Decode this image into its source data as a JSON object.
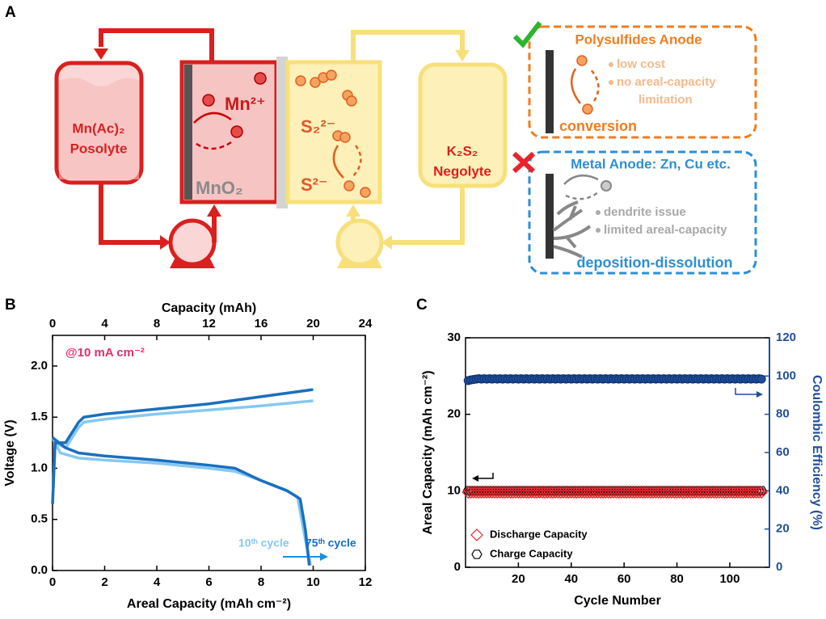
{
  "panel_labels": [
    "A",
    "B",
    "C"
  ],
  "diagram": {
    "posolyte_tank": [
      "Mn(Ac)₂",
      "Posolyte"
    ],
    "positive_cell": {
      "ion": "Mn²⁺",
      "electrode": "MnO₂"
    },
    "negative_cell": {
      "ion_top": "S₂²⁻",
      "ion_bottom": "S²⁻"
    },
    "negolyte_tank": [
      "K₂S₂",
      "Negolyte"
    ],
    "polysulfides_box": {
      "title": "Polysulfides Anode",
      "bullets": [
        "low cost",
        "no areal-capacity",
        "limitation"
      ],
      "footer": "conversion"
    },
    "metal_box": {
      "title": "Metal Anode: Zn, Cu etc.",
      "bullets": [
        "dendrite issue",
        "limited areal-capacity"
      ],
      "footer": "deposition-dissolution"
    }
  },
  "chart_data": [
    {
      "type": "line",
      "xlabel": "Areal Capacity (mAh cm⁻²)",
      "x2label": "Capacity (mAh)",
      "ylabel": "Voltage (V)",
      "xlim": [
        0,
        12
      ],
      "xticks": [
        0,
        2,
        4,
        6,
        8,
        10,
        12
      ],
      "x2lim": [
        0,
        24
      ],
      "x2ticks": [
        0,
        4,
        8,
        12,
        16,
        20,
        24
      ],
      "ylim": [
        0,
        2.3
      ],
      "yticks": [
        {
          "value": 0,
          "label": "0.0"
        },
        0.5,
        {
          "value": 1,
          "label": "1.0"
        },
        1.5,
        {
          "value": 2,
          "label": "2.0"
        }
      ],
      "annotation": "@10 mA cm⁻²",
      "series": [
        {
          "name": "10ᵗʰ cycle",
          "color": "#86c8f0",
          "x": [
            0,
            0.1,
            0.5,
            1,
            1.2,
            2,
            4,
            6,
            8,
            10
          ],
          "values": [
            0.65,
            1.25,
            1.2,
            1.4,
            1.45,
            1.48,
            1.53,
            1.57,
            1.61,
            1.66
          ]
        },
        {
          "color": "#86c8f0",
          "x": [
            0,
            0.3,
            1,
            2,
            4,
            6,
            7,
            8,
            9,
            9.4,
            9.7,
            9.9
          ],
          "values": [
            1.3,
            1.15,
            1.1,
            1.08,
            1.05,
            1,
            0.97,
            0.88,
            0.78,
            0.72,
            0.3,
            0.05
          ]
        },
        {
          "name": "75ᵗʰ cycle",
          "color": "#1a6fbf",
          "x": [
            0,
            0.1,
            0.5,
            1,
            1.2,
            2,
            4,
            6,
            8,
            10
          ],
          "values": [
            0.65,
            1.25,
            1.25,
            1.45,
            1.5,
            1.53,
            1.58,
            1.63,
            1.7,
            1.77
          ]
        },
        {
          "color": "#1a6fbf",
          "x": [
            0,
            0.5,
            1,
            2,
            4,
            6,
            7,
            8,
            9,
            9.5,
            9.7,
            9.85
          ],
          "values": [
            1.3,
            1.2,
            1.15,
            1.12,
            1.08,
            1.03,
            1,
            0.88,
            0.78,
            0.7,
            0.4,
            0.05
          ]
        }
      ]
    },
    {
      "type": "scatter",
      "xlabel": "Cycle Number",
      "ylabel": "Areal Capacity (mAh cm⁻²)",
      "y2label": "Coulombic Efficiency (%)",
      "xlim": [
        0,
        115
      ],
      "xticks": [
        20,
        40,
        60,
        80,
        100
      ],
      "ylim": [
        0,
        30
      ],
      "yticks": [
        0,
        10,
        20,
        30
      ],
      "y2lim": [
        0,
        120
      ],
      "y2ticks": [
        0,
        20,
        40,
        60,
        80,
        100,
        120
      ],
      "x": [
        1,
        2,
        3,
        4,
        5,
        6,
        7,
        8,
        9,
        10,
        11,
        12,
        13,
        14,
        15,
        16,
        17,
        18,
        19,
        20,
        21,
        22,
        23,
        24,
        25,
        26,
        27,
        28,
        29,
        30,
        31,
        32,
        33,
        34,
        35,
        36,
        37,
        38,
        39,
        40,
        41,
        42,
        43,
        44,
        45,
        46,
        47,
        48,
        49,
        50,
        51,
        52,
        53,
        54,
        55,
        56,
        57,
        58,
        59,
        60,
        61,
        62,
        63,
        64,
        65,
        66,
        67,
        68,
        69,
        70,
        71,
        72,
        73,
        74,
        75,
        76,
        77,
        78,
        79,
        80,
        81,
        82,
        83,
        84,
        85,
        86,
        87,
        88,
        89,
        90,
        91,
        92,
        93,
        94,
        95,
        96,
        97,
        98,
        99,
        100,
        101,
        102,
        103,
        104,
        105,
        106,
        107,
        108,
        109,
        110,
        111,
        112
      ],
      "series": [
        {
          "name": "Charge Capacity",
          "marker": "hexagon",
          "color": "#000000",
          "values": [
            10,
            10,
            10,
            10,
            10,
            10,
            10,
            10,
            10,
            10,
            10,
            10,
            10,
            10,
            10,
            10,
            10,
            10,
            10,
            10,
            10,
            10,
            10,
            10,
            10,
            10,
            10,
            10,
            10,
            10,
            10,
            10,
            10,
            10,
            10,
            10,
            10,
            10,
            10,
            10,
            10,
            10,
            10,
            10,
            10,
            10,
            10,
            10,
            10,
            10,
            10,
            10,
            10,
            10,
            10,
            10,
            10,
            10,
            10,
            10,
            10,
            10,
            10,
            10,
            10,
            10,
            10,
            10,
            10,
            10,
            10,
            10,
            10,
            10,
            10,
            10,
            10,
            10,
            10,
            10,
            10,
            10,
            10,
            10,
            10,
            10,
            10,
            10,
            10,
            10,
            10,
            10,
            10,
            10,
            10,
            10,
            10,
            10,
            10,
            10,
            10,
            10,
            10,
            10,
            10,
            10,
            10,
            10,
            10,
            10,
            10,
            10
          ]
        },
        {
          "name": "Discharge Capacity",
          "marker": "diamond",
          "color": "#e8242c",
          "values": [
            9.8,
            9.8,
            9.8,
            9.8,
            9.8,
            9.8,
            9.8,
            9.8,
            9.8,
            9.8,
            9.8,
            9.8,
            9.8,
            9.8,
            9.8,
            9.8,
            9.8,
            9.8,
            9.8,
            9.8,
            9.8,
            9.8,
            9.8,
            9.8,
            9.8,
            9.8,
            9.8,
            9.8,
            9.8,
            9.8,
            9.8,
            9.8,
            9.8,
            9.8,
            9.8,
            9.8,
            9.8,
            9.8,
            9.8,
            9.8,
            9.8,
            9.8,
            9.8,
            9.8,
            9.8,
            9.8,
            9.8,
            9.8,
            9.8,
            9.8,
            9.8,
            9.8,
            9.8,
            9.8,
            9.8,
            9.8,
            9.8,
            9.8,
            9.8,
            9.8,
            9.8,
            9.8,
            9.8,
            9.8,
            9.8,
            9.8,
            9.8,
            9.8,
            9.8,
            9.8,
            9.8,
            9.8,
            9.8,
            9.8,
            9.8,
            9.8,
            9.8,
            9.8,
            9.8,
            9.8,
            9.8,
            9.8,
            9.8,
            9.8,
            9.8,
            9.8,
            9.8,
            9.8,
            9.8,
            9.8,
            9.8,
            9.8,
            9.8,
            9.8,
            9.8,
            9.8,
            9.8,
            9.8,
            9.8,
            9.8,
            9.8,
            9.8,
            9.8,
            9.8,
            9.8,
            9.8,
            9.8,
            9.8,
            9.8,
            9.8,
            9.8,
            9.8
          ]
        },
        {
          "marker": "circle",
          "color": "#1f4e9a",
          "axis": "y2",
          "values": [
            97.6,
            98,
            98.2,
            98.4,
            98.6,
            98.4,
            98.6,
            98.4,
            98.6,
            98.4,
            98.6,
            98.4,
            98.6,
            98.4,
            98.6,
            98.4,
            98.6,
            98.4,
            98.6,
            98.4,
            98.6,
            98.4,
            98.6,
            98.4,
            98.6,
            98.4,
            98.6,
            98.4,
            98.6,
            98.4,
            98.6,
            98.4,
            98.6,
            98.4,
            98.6,
            98.4,
            98.6,
            98.4,
            98.6,
            98.4,
            98.6,
            98.4,
            98.6,
            98.4,
            98.6,
            98.4,
            98.6,
            98.4,
            98.6,
            98.4,
            98.6,
            98.4,
            98.6,
            98.4,
            98.6,
            98.4,
            98.6,
            98.4,
            98.6,
            98.4,
            98.6,
            98.4,
            98.6,
            98.4,
            98.6,
            98.4,
            98.6,
            98.4,
            98.6,
            98.4,
            98.6,
            98.4,
            98.6,
            98.4,
            98.6,
            98.4,
            98.6,
            98.4,
            98.6,
            98.4,
            98.6,
            98.4,
            98.6,
            98.4,
            98.6,
            98.4,
            98.6,
            98.4,
            98.6,
            98.4,
            98.6,
            98.4,
            98.6,
            98.4,
            98.6,
            98.4,
            98.6,
            98.4,
            98.6,
            98.4,
            98.6,
            98.4,
            98.6,
            98.4,
            98.6,
            98.4,
            98.6,
            98.4,
            98.6,
            98.4,
            98.6,
            98.4
          ]
        }
      ]
    }
  ]
}
